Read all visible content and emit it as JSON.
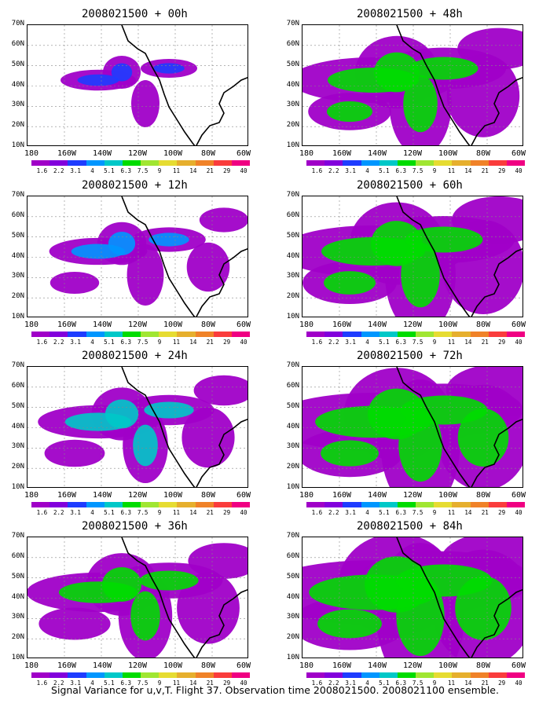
{
  "colorbar": {
    "labels": [
      "1.6",
      "2.2",
      "3.1",
      "4",
      "5.1",
      "6.3",
      "7.5",
      "9",
      "11",
      "14",
      "21",
      "29",
      "40"
    ],
    "colors": [
      "#a000c8",
      "#8200dc",
      "#1e3cff",
      "#0096ff",
      "#00c8c8",
      "#00dc00",
      "#a0e632",
      "#e6dc32",
      "#e6af2d",
      "#f08228",
      "#fa3c3c",
      "#f00082"
    ]
  },
  "axes": {
    "lat_labels": [
      "70N",
      "60N",
      "50N",
      "40N",
      "30N",
      "20N",
      "10N"
    ],
    "lon_labels": [
      "180",
      "160W",
      "140W",
      "120W",
      "100W",
      "80W",
      "60W"
    ]
  },
  "panels": [
    {
      "title": "2008021500 + 00h",
      "level": 0
    },
    {
      "title": "2008021500 + 48h",
      "level": 4
    },
    {
      "title": "2008021500 + 12h",
      "level": 1
    },
    {
      "title": "2008021500 + 60h",
      "level": 5
    },
    {
      "title": "2008021500 + 24h",
      "level": 2
    },
    {
      "title": "2008021500 + 72h",
      "level": 6
    },
    {
      "title": "2008021500 + 36h",
      "level": 3
    },
    {
      "title": "2008021500 + 84h",
      "level": 7
    }
  ],
  "caption": "Signal Variance for u,v,T. Flight 37. Observation time 2008021500. 2008021100 ensemble."
}
